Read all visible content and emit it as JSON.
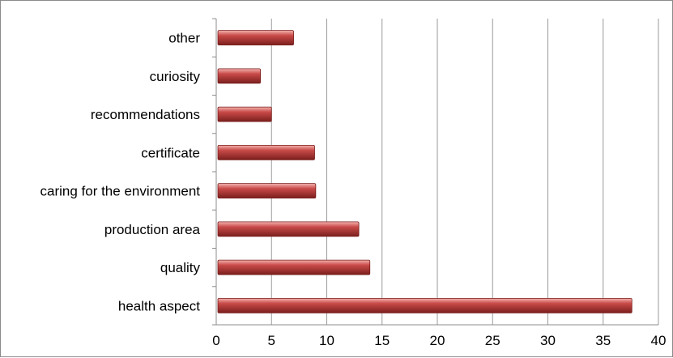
{
  "chart_data": {
    "type": "bar",
    "orientation": "horizontal",
    "categories": [
      "health aspect",
      "quality",
      "production area",
      "caring for the environment",
      "certificate",
      "recommendations",
      "curiosity",
      "other"
    ],
    "values": [
      37.6,
      13.9,
      12.9,
      9.0,
      8.9,
      5.0,
      4.0,
      7.0
    ],
    "title": "",
    "xlabel": "",
    "ylabel": "",
    "xlim": [
      0,
      40
    ],
    "x_ticks": [
      0,
      5,
      10,
      15,
      20,
      25,
      30,
      35,
      40
    ],
    "x_tick_labels": [
      "0",
      "5",
      "10",
      "15",
      "20",
      "25",
      "30",
      "35",
      "40"
    ],
    "grid": "vertical",
    "legend": "none",
    "colors": {
      "bar_fill": "#c84a48",
      "bar_highlight": "#f3b2ae",
      "bar_edge": "#7a1f1d",
      "gridline": "#9a9a9a",
      "axis": "#8c8c8c"
    }
  }
}
